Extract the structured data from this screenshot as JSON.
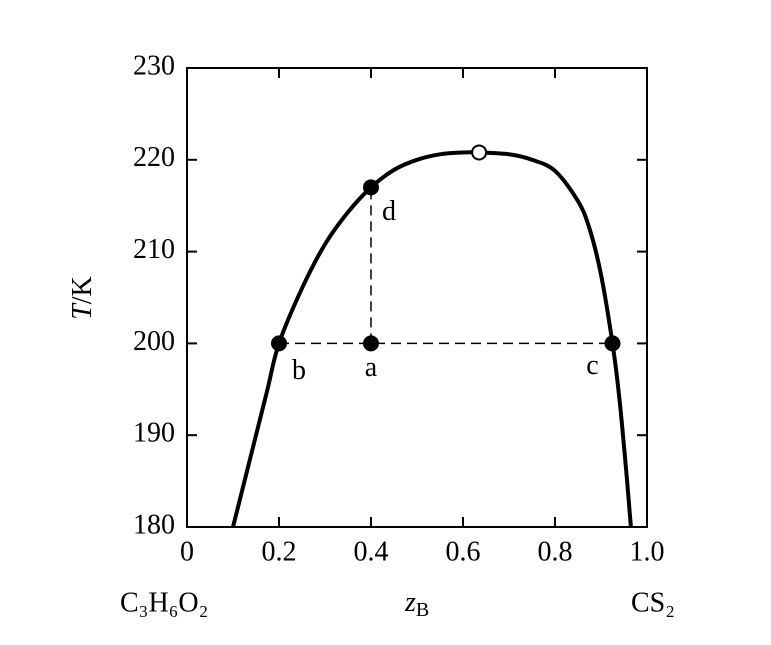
{
  "chart_data": {
    "type": "line",
    "xlabel": {
      "symbol": "z",
      "subscript": "B"
    },
    "ylabel": {
      "symbol": "T",
      "unit": "/K"
    },
    "left_label": "C₃H₆O₂",
    "right_label": "CS₂",
    "xlim": [
      0,
      1
    ],
    "ylim": [
      180,
      230
    ],
    "xticks": [
      0,
      0.2,
      0.4,
      0.6,
      0.8,
      {
        "value": 1,
        "label": "1.0"
      }
    ],
    "yticks": [
      180,
      190,
      200,
      210,
      220,
      230
    ],
    "series": [
      {
        "color": "#000000",
        "x": [
          0.1,
          0.125,
          0.15,
          0.175,
          0.2,
          0.25,
          0.3,
          0.35,
          0.4,
          0.45,
          0.5,
          0.55,
          0.6,
          0.635,
          0.7,
          0.75,
          0.8,
          0.85,
          0.875,
          0.9,
          0.925,
          0.94,
          0.955,
          0.965
        ],
        "values": [
          180,
          185,
          190,
          195,
          200,
          206,
          210.8,
          214.3,
          217,
          218.9,
          220,
          220.6,
          220.8,
          220.8,
          220.6,
          220,
          218.8,
          215.5,
          212.5,
          207.5,
          200,
          194,
          186,
          180
        ]
      }
    ],
    "points": [
      {
        "label": "a",
        "x": 0.4,
        "y": 200,
        "filled": true
      },
      {
        "label": "b",
        "x": 0.2,
        "y": 200,
        "filled": true
      },
      {
        "label": "c",
        "x": 0.925,
        "y": 200,
        "filled": true
      },
      {
        "label": "d",
        "x": 0.4,
        "y": 217,
        "filled": true
      },
      {
        "x": 0.635,
        "y": 220.8,
        "filled": false
      }
    ]
  }
}
